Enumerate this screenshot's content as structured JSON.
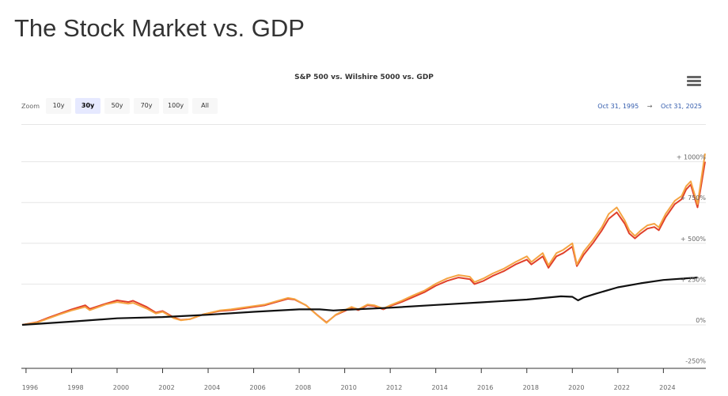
{
  "page": {
    "title": "The Stock Market vs. GDP"
  },
  "toolbar": {
    "zoom_label": "Zoom",
    "buttons": [
      {
        "label": "10y",
        "active": false
      },
      {
        "label": "30y",
        "active": true
      },
      {
        "label": "50y",
        "active": false
      },
      {
        "label": "70y",
        "active": false
      },
      {
        "label": "100y",
        "active": false
      },
      {
        "label": "All",
        "active": false
      }
    ],
    "range_from": "Oct 31, 1995",
    "range_arrow": "→",
    "range_to": "Oct 31, 2025"
  },
  "chart_data": {
    "type": "line",
    "title": "S&P 500 vs. Wilshire 5000 vs. GDP",
    "xlabel": "",
    "ylabel": "",
    "xlim": [
      1995.83,
      2025.83
    ],
    "ylim": [
      -250,
      1050
    ],
    "y_ticks": [
      -250,
      0,
      250,
      500,
      750,
      1000
    ],
    "y_tick_labels": [
      "-250%",
      "0%",
      "+ 250%",
      "+ 500%",
      "+ 750%",
      "+ 1000%"
    ],
    "x_ticks": [
      1996,
      1998,
      2000,
      2002,
      2004,
      2006,
      2008,
      2010,
      2012,
      2014,
      2016,
      2018,
      2020,
      2022,
      2024
    ],
    "x_tick_labels": [
      "1996",
      "1998",
      "2000",
      "2002",
      "2004",
      "2006",
      "2008",
      "2010",
      "2012",
      "2014",
      "2016",
      "2018",
      "2020",
      "2022",
      "2024"
    ],
    "grid": true,
    "series": [
      {
        "name": "S&P 500",
        "color": "#e0402a",
        "x": [
          1995.83,
          1996.5,
          1997.0,
          1997.5,
          1998.0,
          1998.6,
          1998.8,
          1999.5,
          2000.0,
          2000.5,
          2000.7,
          2001.3,
          2001.7,
          2002.0,
          2002.5,
          2002.8,
          2003.2,
          2003.8,
          2004.5,
          2005.0,
          2005.5,
          2006.0,
          2006.5,
          2007.0,
          2007.5,
          2007.8,
          2008.3,
          2008.8,
          2009.2,
          2009.6,
          2010.0,
          2010.3,
          2010.6,
          2011.0,
          2011.3,
          2011.7,
          2012.0,
          2012.5,
          2013.0,
          2013.5,
          2014.0,
          2014.5,
          2015.0,
          2015.5,
          2015.7,
          2016.1,
          2016.5,
          2017.0,
          2017.5,
          2018.0,
          2018.2,
          2018.7,
          2018.95,
          2019.3,
          2019.6,
          2020.0,
          2020.2,
          2020.5,
          2020.9,
          2021.3,
          2021.6,
          2021.95,
          2022.3,
          2022.5,
          2022.75,
          2023.0,
          2023.3,
          2023.6,
          2023.8,
          2024.1,
          2024.5,
          2024.8,
          2025.0,
          2025.2,
          2025.5,
          2025.83
        ],
        "values": [
          0,
          18,
          45,
          70,
          95,
          120,
          98,
          130,
          150,
          140,
          148,
          110,
          75,
          85,
          45,
          30,
          35,
          65,
          85,
          90,
          100,
          110,
          120,
          140,
          160,
          155,
          120,
          60,
          15,
          60,
          85,
          105,
          90,
          120,
          115,
          95,
          115,
          140,
          170,
          200,
          240,
          270,
          290,
          280,
          250,
          270,
          300,
          330,
          370,
          400,
          370,
          420,
          350,
          420,
          440,
          480,
          360,
          430,
          500,
          580,
          650,
          690,
          620,
          560,
          530,
          560,
          590,
          600,
          580,
          660,
          740,
          770,
          830,
          860,
          720,
          1000
        ]
      },
      {
        "name": "Wilshire 5000",
        "color": "#f5a442",
        "x": [
          1995.83,
          1996.5,
          1997.0,
          1997.5,
          1998.0,
          1998.6,
          1998.8,
          1999.5,
          2000.0,
          2000.5,
          2000.7,
          2001.3,
          2001.7,
          2002.0,
          2002.5,
          2002.8,
          2003.2,
          2003.8,
          2004.5,
          2005.0,
          2005.5,
          2006.0,
          2006.5,
          2007.0,
          2007.5,
          2007.8,
          2008.3,
          2008.8,
          2009.2,
          2009.6,
          2010.0,
          2010.3,
          2010.6,
          2011.0,
          2011.3,
          2011.7,
          2012.0,
          2012.5,
          2013.0,
          2013.5,
          2014.0,
          2014.5,
          2015.0,
          2015.5,
          2015.7,
          2016.1,
          2016.5,
          2017.0,
          2017.5,
          2018.0,
          2018.2,
          2018.7,
          2018.95,
          2019.3,
          2019.6,
          2020.0,
          2020.2,
          2020.5,
          2020.9,
          2021.3,
          2021.6,
          2021.95,
          2022.3,
          2022.5,
          2022.75,
          2023.0,
          2023.3,
          2023.6,
          2023.8,
          2024.1,
          2024.5,
          2024.8,
          2025.0,
          2025.2,
          2025.5,
          2025.83
        ],
        "values": [
          0,
          15,
          40,
          65,
          88,
          110,
          90,
          125,
          140,
          130,
          135,
          100,
          70,
          80,
          40,
          28,
          35,
          65,
          88,
          95,
          105,
          115,
          125,
          145,
          165,
          158,
          120,
          58,
          12,
          62,
          90,
          110,
          95,
          125,
          120,
          100,
          120,
          148,
          180,
          210,
          252,
          285,
          305,
          295,
          262,
          285,
          315,
          345,
          385,
          420,
          385,
          440,
          365,
          440,
          460,
          500,
          370,
          450,
          520,
          600,
          680,
          720,
          640,
          580,
          545,
          578,
          610,
          620,
          598,
          680,
          760,
          790,
          850,
          880,
          740,
          1050
        ]
      },
      {
        "name": "GDP",
        "color": "#111111",
        "x": [
          1995.83,
          1998.0,
          2000.0,
          2002.0,
          2004.0,
          2006.0,
          2008.0,
          2008.9,
          2009.5,
          2010.0,
          2012.0,
          2014.0,
          2016.0,
          2018.0,
          2019.5,
          2020.0,
          2020.25,
          2020.5,
          2021.0,
          2022.0,
          2023.0,
          2024.0,
          2025.5
        ],
        "values": [
          0,
          20,
          40,
          48,
          62,
          80,
          95,
          95,
          88,
          92,
          105,
          122,
          138,
          155,
          175,
          172,
          150,
          168,
          190,
          230,
          255,
          275,
          290
        ]
      }
    ]
  }
}
